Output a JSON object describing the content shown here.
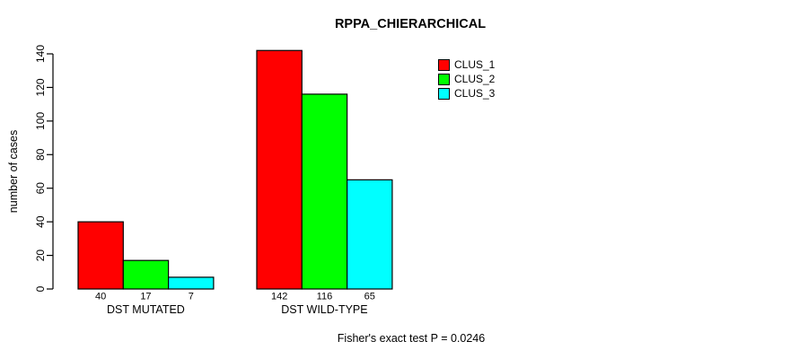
{
  "chart_data": {
    "type": "bar",
    "title": "RPPA_CHIERARCHICAL",
    "xlabel": "",
    "ylabel": "number of cases",
    "categories": [
      "DST MUTATED",
      "DST WILD-TYPE"
    ],
    "series": [
      {
        "name": "CLUS_1",
        "color": "#ff0000",
        "values": [
          40,
          142
        ]
      },
      {
        "name": "CLUS_2",
        "color": "#00ff00",
        "values": [
          17,
          116
        ]
      },
      {
        "name": "CLUS_3",
        "color": "#00ffff",
        "values": [
          7,
          65
        ]
      }
    ],
    "ylim": [
      0,
      140
    ],
    "yticks": [
      0,
      20,
      40,
      60,
      80,
      100,
      120,
      140
    ],
    "grid": false,
    "legend_position": "top-right",
    "bar_border_color": "#000000",
    "value_labels_shown": true,
    "annotation": "Fisher's exact test P = 0.0246"
  }
}
